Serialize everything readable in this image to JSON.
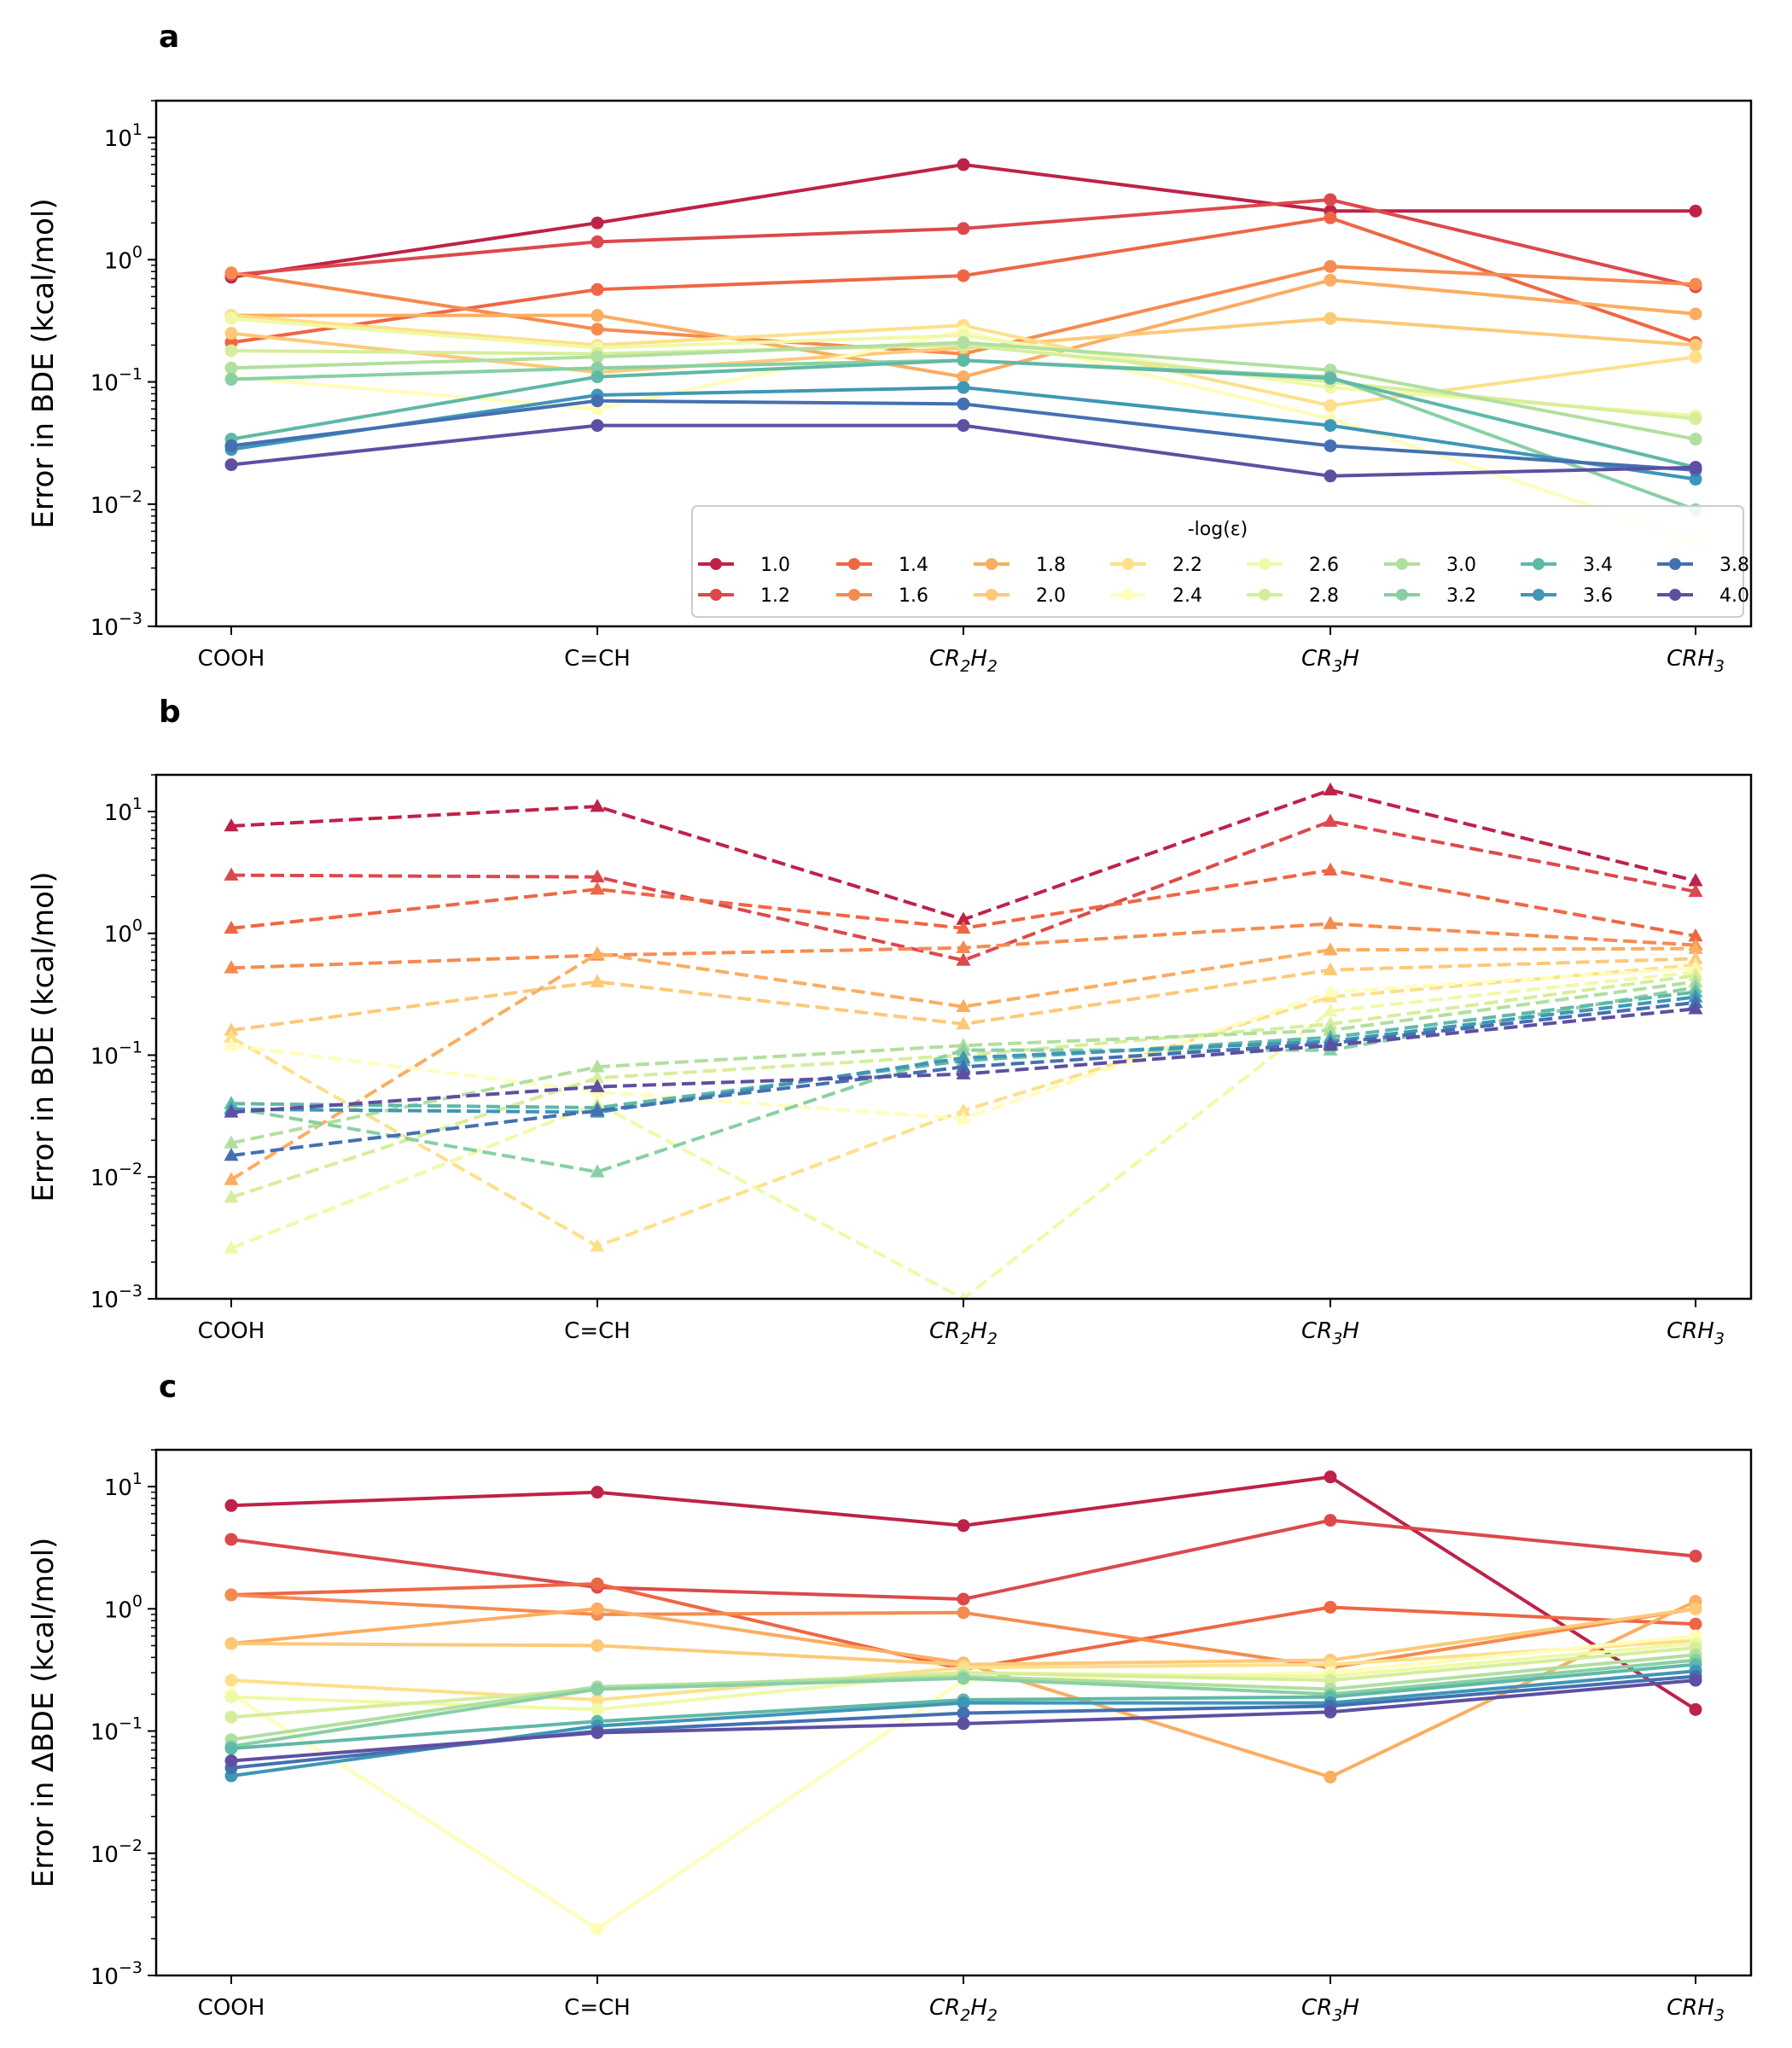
{
  "legend": {
    "title": "-log(ε)",
    "placement": "lower-right of panel a",
    "entries": [
      {
        "label": "1.0",
        "color": "#be2248"
      },
      {
        "label": "1.2",
        "color": "#dc494c"
      },
      {
        "label": "1.4",
        "color": "#ef6644"
      },
      {
        "label": "1.6",
        "color": "#f58b50"
      },
      {
        "label": "1.8",
        "color": "#fbad60"
      },
      {
        "label": "2.0",
        "color": "#fdc978"
      },
      {
        "label": "2.2",
        "color": "#fee08b"
      },
      {
        "label": "2.4",
        "color": "#fffdb8"
      },
      {
        "label": "2.6",
        "color": "#f0f9a7"
      },
      {
        "label": "2.8",
        "color": "#d6ee9b"
      },
      {
        "label": "3.0",
        "color": "#b1df9f"
      },
      {
        "label": "3.2",
        "color": "#88d0a4"
      },
      {
        "label": "3.4",
        "color": "#5fb9a7"
      },
      {
        "label": "3.6",
        "color": "#3f96b7"
      },
      {
        "label": "3.8",
        "color": "#4470b1"
      },
      {
        "label": "4.0",
        "color": "#5e4fa2"
      }
    ]
  },
  "chart_data": [
    {
      "panel": "a",
      "type": "line",
      "marker": "circle",
      "linestyle": "solid",
      "ylabel": "Error in BDE (kcal/mol)",
      "yscale": "log",
      "ylim": [
        0.001,
        20
      ],
      "yticks": [
        {
          "label": "10",
          "exp": "1",
          "value": 10
        },
        {
          "label": "10",
          "exp": "0",
          "value": 1
        },
        {
          "label": "10",
          "exp": "−1",
          "value": 0.1
        },
        {
          "label": "10",
          "exp": "−2",
          "value": 0.01
        },
        {
          "label": "10",
          "exp": "−3",
          "value": 0.001
        }
      ],
      "categories": [
        {
          "main": "COOH",
          "italic": false
        },
        {
          "main": "C=CH",
          "italic": false
        },
        {
          "main": "CR",
          "sub1": "2",
          "mid": "H",
          "sub2": "2",
          "italic": true
        },
        {
          "main": "CR",
          "sub1": "3",
          "mid": "H",
          "sub2": "",
          "italic": true
        },
        {
          "main": "CRH",
          "sub1": "3",
          "mid": "",
          "sub2": "",
          "italic": true
        }
      ],
      "series": [
        {
          "name": "1.0",
          "values": [
            0.72,
            2.0,
            6.0,
            2.5,
            2.5
          ]
        },
        {
          "name": "1.2",
          "values": [
            0.75,
            1.4,
            1.8,
            3.1,
            0.6
          ]
        },
        {
          "name": "1.4",
          "values": [
            0.21,
            0.57,
            0.74,
            2.2,
            0.21
          ]
        },
        {
          "name": "1.6",
          "values": [
            0.78,
            0.27,
            0.17,
            0.88,
            0.63
          ]
        },
        {
          "name": "1.8",
          "values": [
            0.35,
            0.35,
            0.11,
            0.68,
            0.36
          ]
        },
        {
          "name": "2.0",
          "values": [
            0.25,
            0.12,
            0.19,
            0.33,
            0.2
          ]
        },
        {
          "name": "2.2",
          "values": [
            0.35,
            0.2,
            0.29,
            0.064,
            0.16
          ]
        },
        {
          "name": "2.4",
          "values": [
            0.11,
            0.06,
            0.26,
            0.05,
            0.005
          ]
        },
        {
          "name": "2.6",
          "values": [
            0.33,
            0.19,
            0.24,
            0.09,
            0.053
          ]
        },
        {
          "name": "2.8",
          "values": [
            0.18,
            0.17,
            0.2,
            0.1,
            0.05
          ]
        },
        {
          "name": "3.0",
          "values": [
            0.13,
            0.16,
            0.21,
            0.125,
            0.034
          ]
        },
        {
          "name": "3.2",
          "values": [
            0.105,
            0.13,
            0.15,
            0.11,
            0.009
          ]
        },
        {
          "name": "3.4",
          "values": [
            0.034,
            0.11,
            0.15,
            0.107,
            0.02
          ]
        },
        {
          "name": "3.6",
          "values": [
            0.028,
            0.078,
            0.09,
            0.044,
            0.016
          ]
        },
        {
          "name": "3.8",
          "values": [
            0.03,
            0.07,
            0.066,
            0.03,
            0.019
          ]
        },
        {
          "name": "4.0",
          "values": [
            0.021,
            0.044,
            0.044,
            0.017,
            0.02
          ]
        }
      ]
    },
    {
      "panel": "b",
      "type": "line",
      "marker": "triangle",
      "linestyle": "dashed",
      "ylabel": "Error in BDE (kcal/mol)",
      "yscale": "log",
      "ylim": [
        0.001,
        20
      ],
      "yticks": [
        {
          "label": "10",
          "exp": "1",
          "value": 10
        },
        {
          "label": "10",
          "exp": "0",
          "value": 1
        },
        {
          "label": "10",
          "exp": "−1",
          "value": 0.1
        },
        {
          "label": "10",
          "exp": "−2",
          "value": 0.01
        },
        {
          "label": "10",
          "exp": "−3",
          "value": 0.001
        }
      ],
      "categories": [
        {
          "main": "COOH",
          "italic": false
        },
        {
          "main": "C=CH",
          "italic": false
        },
        {
          "main": "CR",
          "sub1": "2",
          "mid": "H",
          "sub2": "2",
          "italic": true
        },
        {
          "main": "CR",
          "sub1": "3",
          "mid": "H",
          "sub2": "",
          "italic": true
        },
        {
          "main": "CRH",
          "sub1": "3",
          "mid": "",
          "sub2": "",
          "italic": true
        }
      ],
      "series": [
        {
          "name": "1.0",
          "values": [
            7.6,
            11.0,
            1.3,
            15.0,
            2.7
          ]
        },
        {
          "name": "1.2",
          "values": [
            3.0,
            2.9,
            0.6,
            8.3,
            2.2
          ]
        },
        {
          "name": "1.4",
          "values": [
            1.1,
            2.3,
            1.1,
            3.3,
            0.95
          ]
        },
        {
          "name": "1.6",
          "values": [
            0.52,
            0.66,
            0.76,
            1.2,
            0.8
          ]
        },
        {
          "name": "1.8",
          "values": [
            0.0095,
            0.68,
            0.25,
            0.73,
            0.75
          ]
        },
        {
          "name": "2.0",
          "values": [
            0.16,
            0.4,
            0.18,
            0.5,
            0.62
          ]
        },
        {
          "name": "2.2",
          "values": [
            0.14,
            0.0027,
            0.035,
            0.3,
            0.55
          ]
        },
        {
          "name": "2.4",
          "values": [
            0.12,
            0.05,
            0.03,
            0.33,
            0.52
          ]
        },
        {
          "name": "2.6",
          "values": [
            0.0026,
            0.04,
            0.001,
            0.23,
            0.48
          ]
        },
        {
          "name": "2.8",
          "values": [
            0.0068,
            0.065,
            0.1,
            0.18,
            0.45
          ]
        },
        {
          "name": "3.0",
          "values": [
            0.019,
            0.08,
            0.12,
            0.16,
            0.4
          ]
        },
        {
          "name": "3.2",
          "values": [
            0.037,
            0.011,
            0.11,
            0.11,
            0.36
          ]
        },
        {
          "name": "3.4",
          "values": [
            0.04,
            0.037,
            0.09,
            0.14,
            0.33
          ]
        },
        {
          "name": "3.6",
          "values": [
            0.036,
            0.034,
            0.095,
            0.13,
            0.3
          ]
        },
        {
          "name": "3.8",
          "values": [
            0.015,
            0.035,
            0.08,
            0.125,
            0.27
          ]
        },
        {
          "name": "4.0",
          "values": [
            0.034,
            0.055,
            0.07,
            0.12,
            0.24
          ]
        }
      ]
    },
    {
      "panel": "c",
      "type": "line",
      "marker": "circle",
      "linestyle": "solid",
      "ylabel": "Error in ΔBDE (kcal/mol)",
      "yscale": "log",
      "ylim": [
        0.001,
        20
      ],
      "yticks": [
        {
          "label": "10",
          "exp": "1",
          "value": 10
        },
        {
          "label": "10",
          "exp": "0",
          "value": 1
        },
        {
          "label": "10",
          "exp": "−1",
          "value": 0.1
        },
        {
          "label": "10",
          "exp": "−2",
          "value": 0.01
        },
        {
          "label": "10",
          "exp": "−3",
          "value": 0.001
        }
      ],
      "categories": [
        {
          "main": "COOH",
          "italic": false
        },
        {
          "main": "C=CH",
          "italic": false
        },
        {
          "main": "CR",
          "sub1": "2",
          "mid": "H",
          "sub2": "2",
          "italic": true
        },
        {
          "main": "CR",
          "sub1": "3",
          "mid": "H",
          "sub2": "",
          "italic": true
        },
        {
          "main": "CRH",
          "sub1": "3",
          "mid": "",
          "sub2": "",
          "italic": true
        }
      ],
      "series": [
        {
          "name": "1.0",
          "values": [
            7.0,
            9.0,
            4.8,
            12.0,
            0.15
          ]
        },
        {
          "name": "1.2",
          "values": [
            3.7,
            1.5,
            1.2,
            5.3,
            2.7
          ]
        },
        {
          "name": "1.4",
          "values": [
            1.3,
            1.6,
            0.32,
            1.03,
            0.75
          ]
        },
        {
          "name": "1.6",
          "values": [
            1.3,
            0.9,
            0.93,
            0.33,
            1.0
          ]
        },
        {
          "name": "1.8",
          "values": [
            0.52,
            1.0,
            0.36,
            0.042,
            1.15
          ]
        },
        {
          "name": "2.0",
          "values": [
            0.52,
            0.5,
            0.35,
            0.38,
            1.0
          ]
        },
        {
          "name": "2.2",
          "values": [
            0.26,
            0.18,
            0.33,
            0.35,
            0.55
          ]
        },
        {
          "name": "2.4",
          "values": [
            0.2,
            0.0024,
            0.26,
            0.3,
            0.6
          ]
        },
        {
          "name": "2.6",
          "values": [
            0.19,
            0.15,
            0.3,
            0.28,
            0.52
          ]
        },
        {
          "name": "2.8",
          "values": [
            0.13,
            0.22,
            0.3,
            0.26,
            0.48
          ]
        },
        {
          "name": "3.0",
          "values": [
            0.085,
            0.23,
            0.28,
            0.22,
            0.42
          ]
        },
        {
          "name": "3.2",
          "values": [
            0.075,
            0.22,
            0.27,
            0.2,
            0.38
          ]
        },
        {
          "name": "3.4",
          "values": [
            0.072,
            0.12,
            0.18,
            0.19,
            0.35
          ]
        },
        {
          "name": "3.6",
          "values": [
            0.043,
            0.11,
            0.17,
            0.17,
            0.31
          ]
        },
        {
          "name": "3.8",
          "values": [
            0.05,
            0.1,
            0.14,
            0.16,
            0.28
          ]
        },
        {
          "name": "4.0",
          "values": [
            0.057,
            0.097,
            0.115,
            0.143,
            0.26
          ]
        }
      ]
    }
  ]
}
